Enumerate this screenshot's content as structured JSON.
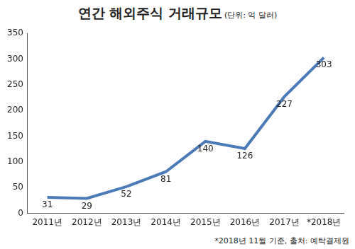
{
  "chart_data": {
    "type": "line",
    "title": "연간 해외주식 거래규모",
    "subtitle": "(단위: 억 달러)",
    "annotations": [
      "*2018년 11월 기준, 출처: 예탁결제원"
    ],
    "categories": [
      "2011년",
      "2012년",
      "2013년",
      "2014년",
      "2015년",
      "2016년",
      "2017년",
      "*2018년"
    ],
    "values": [
      31,
      29,
      52,
      81,
      140,
      126,
      227,
      303
    ],
    "color": "#4a7ab8",
    "marker": "none",
    "ylim": [
      0,
      350
    ],
    "yticks": [
      0,
      50,
      100,
      150,
      200,
      250,
      300,
      350
    ],
    "grid": false,
    "data_labels": true
  }
}
